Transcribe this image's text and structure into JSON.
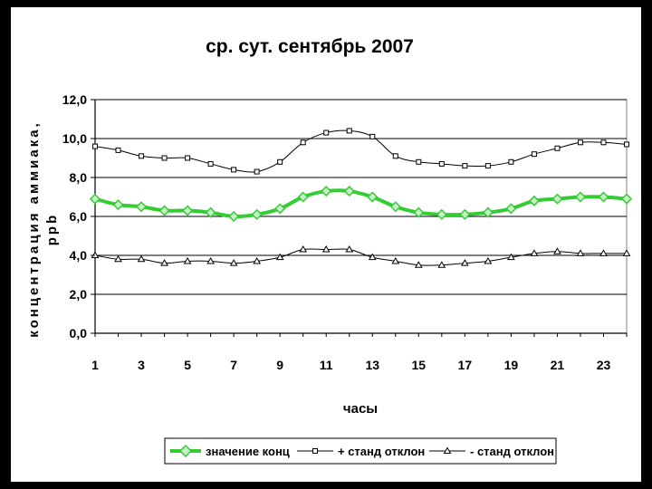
{
  "chart_data": {
    "type": "line",
    "title": "ср. сут. сентябрь 2007",
    "xlabel": "часы",
    "ylabel_line1": "концентрация аммиака,",
    "ylabel_line2": "ppb",
    "x": [
      1,
      2,
      3,
      4,
      5,
      6,
      7,
      8,
      9,
      10,
      11,
      12,
      13,
      14,
      15,
      16,
      17,
      18,
      19,
      20,
      21,
      22,
      23,
      24
    ],
    "x_tick_labels": [
      "1",
      "3",
      "5",
      "7",
      "9",
      "11",
      "13",
      "15",
      "17",
      "19",
      "21",
      "23"
    ],
    "y_tick_labels": [
      "0,0",
      "2,0",
      "4,0",
      "6,0",
      "8,0",
      "10,0",
      "12,0"
    ],
    "ylim": [
      0,
      12
    ],
    "grid": "horizontal",
    "legend_position": "bottom",
    "series": [
      {
        "name": "значение конц",
        "color": "#33cc33",
        "marker": "diamond",
        "values": [
          6.9,
          6.6,
          6.5,
          6.3,
          6.3,
          6.2,
          6.0,
          6.1,
          6.4,
          7.0,
          7.3,
          7.3,
          7.0,
          6.5,
          6.2,
          6.1,
          6.1,
          6.2,
          6.4,
          6.8,
          6.9,
          7.0,
          7.0,
          6.9
        ]
      },
      {
        "name": "+ станд отклон",
        "color": "#000000",
        "marker": "square",
        "values": [
          9.6,
          9.4,
          9.1,
          9.0,
          9.0,
          8.7,
          8.4,
          8.3,
          8.8,
          9.8,
          10.3,
          10.4,
          10.1,
          9.1,
          8.8,
          8.7,
          8.6,
          8.6,
          8.8,
          9.2,
          9.5,
          9.8,
          9.8,
          9.7
        ]
      },
      {
        "name": "- станд отклон",
        "color": "#000000",
        "marker": "triangle",
        "values": [
          4.0,
          3.8,
          3.8,
          3.6,
          3.7,
          3.7,
          3.6,
          3.7,
          3.9,
          4.3,
          4.3,
          4.3,
          3.9,
          3.7,
          3.5,
          3.5,
          3.6,
          3.7,
          3.9,
          4.1,
          4.2,
          4.1,
          4.1,
          4.1
        ]
      }
    ]
  }
}
